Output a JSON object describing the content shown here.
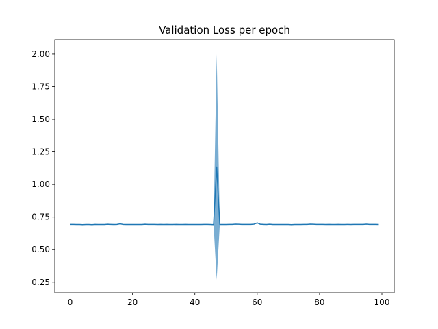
{
  "chart_data": {
    "type": "line",
    "title": "Validation Loss per epoch",
    "xlabel": "",
    "ylabel": "",
    "xlim": [
      -4.95,
      103.95
    ],
    "ylim": [
      0.17,
      2.11
    ],
    "xticks": [
      0,
      20,
      40,
      60,
      80,
      100
    ],
    "yticks": [
      0.25,
      0.5,
      0.75,
      1.0,
      1.25,
      1.5,
      1.75,
      2.0
    ],
    "x_tick_labels": [
      "0",
      "20",
      "40",
      "60",
      "80",
      "100"
    ],
    "y_tick_labels": [
      "0.25",
      "0.50",
      "0.75",
      "1.00",
      "1.25",
      "1.50",
      "1.75",
      "2.00"
    ],
    "grid": false,
    "colors": {
      "line": "#1f77b4",
      "band": "#1f77b4"
    },
    "series": [
      {
        "kind": "mean_with_band",
        "x": [
          0,
          1,
          2,
          3,
          4,
          5,
          6,
          7,
          8,
          9,
          10,
          11,
          12,
          13,
          14,
          15,
          16,
          17,
          18,
          19,
          20,
          21,
          22,
          23,
          24,
          25,
          26,
          27,
          28,
          29,
          30,
          31,
          32,
          33,
          34,
          35,
          36,
          37,
          38,
          39,
          40,
          41,
          42,
          43,
          44,
          45,
          46,
          47,
          48,
          49,
          50,
          51,
          52,
          53,
          54,
          55,
          56,
          57,
          58,
          59,
          60,
          61,
          62,
          63,
          64,
          65,
          66,
          67,
          68,
          69,
          70,
          71,
          72,
          73,
          74,
          75,
          76,
          77,
          78,
          79,
          80,
          81,
          82,
          83,
          84,
          85,
          86,
          87,
          88,
          89,
          90,
          91,
          92,
          93,
          94,
          95,
          96,
          97,
          98,
          99
        ],
        "mean": [
          0.694,
          0.694,
          0.693,
          0.693,
          0.692,
          0.693,
          0.693,
          0.692,
          0.694,
          0.693,
          0.693,
          0.693,
          0.695,
          0.694,
          0.693,
          0.694,
          0.698,
          0.694,
          0.693,
          0.693,
          0.693,
          0.693,
          0.693,
          0.693,
          0.695,
          0.694,
          0.694,
          0.694,
          0.693,
          0.694,
          0.693,
          0.694,
          0.693,
          0.693,
          0.694,
          0.693,
          0.693,
          0.694,
          0.693,
          0.693,
          0.693,
          0.693,
          0.693,
          0.694,
          0.694,
          0.693,
          0.692,
          1.135,
          0.693,
          0.693,
          0.693,
          0.694,
          0.694,
          0.696,
          0.695,
          0.694,
          0.694,
          0.694,
          0.694,
          0.696,
          0.705,
          0.695,
          0.694,
          0.693,
          0.695,
          0.693,
          0.693,
          0.693,
          0.693,
          0.693,
          0.693,
          0.692,
          0.693,
          0.693,
          0.693,
          0.694,
          0.694,
          0.696,
          0.695,
          0.694,
          0.694,
          0.694,
          0.693,
          0.694,
          0.693,
          0.693,
          0.694,
          0.693,
          0.693,
          0.694,
          0.693,
          0.694,
          0.694,
          0.694,
          0.694,
          0.696,
          0.694,
          0.694,
          0.694,
          0.693
        ],
        "lower": [
          0.693,
          0.693,
          0.692,
          0.692,
          0.691,
          0.692,
          0.692,
          0.691,
          0.693,
          0.692,
          0.692,
          0.692,
          0.694,
          0.693,
          0.692,
          0.693,
          0.696,
          0.693,
          0.692,
          0.692,
          0.692,
          0.692,
          0.692,
          0.692,
          0.694,
          0.693,
          0.693,
          0.693,
          0.692,
          0.693,
          0.692,
          0.693,
          0.692,
          0.692,
          0.693,
          0.692,
          0.692,
          0.693,
          0.692,
          0.692,
          0.692,
          0.692,
          0.692,
          0.693,
          0.693,
          0.692,
          0.691,
          0.27,
          0.692,
          0.692,
          0.692,
          0.693,
          0.693,
          0.695,
          0.694,
          0.693,
          0.693,
          0.693,
          0.693,
          0.694,
          0.7,
          0.694,
          0.693,
          0.692,
          0.694,
          0.692,
          0.692,
          0.692,
          0.692,
          0.692,
          0.692,
          0.691,
          0.692,
          0.692,
          0.692,
          0.693,
          0.693,
          0.695,
          0.694,
          0.693,
          0.693,
          0.693,
          0.692,
          0.693,
          0.692,
          0.692,
          0.693,
          0.692,
          0.692,
          0.693,
          0.692,
          0.693,
          0.693,
          0.693,
          0.693,
          0.695,
          0.693,
          0.693,
          0.693,
          0.692
        ],
        "upper": [
          0.695,
          0.695,
          0.694,
          0.694,
          0.693,
          0.694,
          0.694,
          0.693,
          0.695,
          0.694,
          0.694,
          0.694,
          0.696,
          0.695,
          0.694,
          0.695,
          0.7,
          0.695,
          0.694,
          0.694,
          0.694,
          0.694,
          0.694,
          0.694,
          0.696,
          0.695,
          0.695,
          0.695,
          0.694,
          0.695,
          0.694,
          0.695,
          0.694,
          0.694,
          0.695,
          0.694,
          0.694,
          0.695,
          0.694,
          0.694,
          0.694,
          0.694,
          0.694,
          0.695,
          0.695,
          0.694,
          0.693,
          2.0,
          0.694,
          0.694,
          0.694,
          0.695,
          0.695,
          0.697,
          0.696,
          0.695,
          0.695,
          0.695,
          0.695,
          0.698,
          0.71,
          0.696,
          0.695,
          0.694,
          0.696,
          0.694,
          0.694,
          0.694,
          0.694,
          0.694,
          0.694,
          0.693,
          0.694,
          0.694,
          0.694,
          0.695,
          0.695,
          0.697,
          0.696,
          0.695,
          0.695,
          0.695,
          0.694,
          0.695,
          0.694,
          0.694,
          0.695,
          0.694,
          0.694,
          0.695,
          0.694,
          0.695,
          0.695,
          0.695,
          0.695,
          0.697,
          0.695,
          0.695,
          0.695,
          0.694
        ]
      }
    ]
  }
}
